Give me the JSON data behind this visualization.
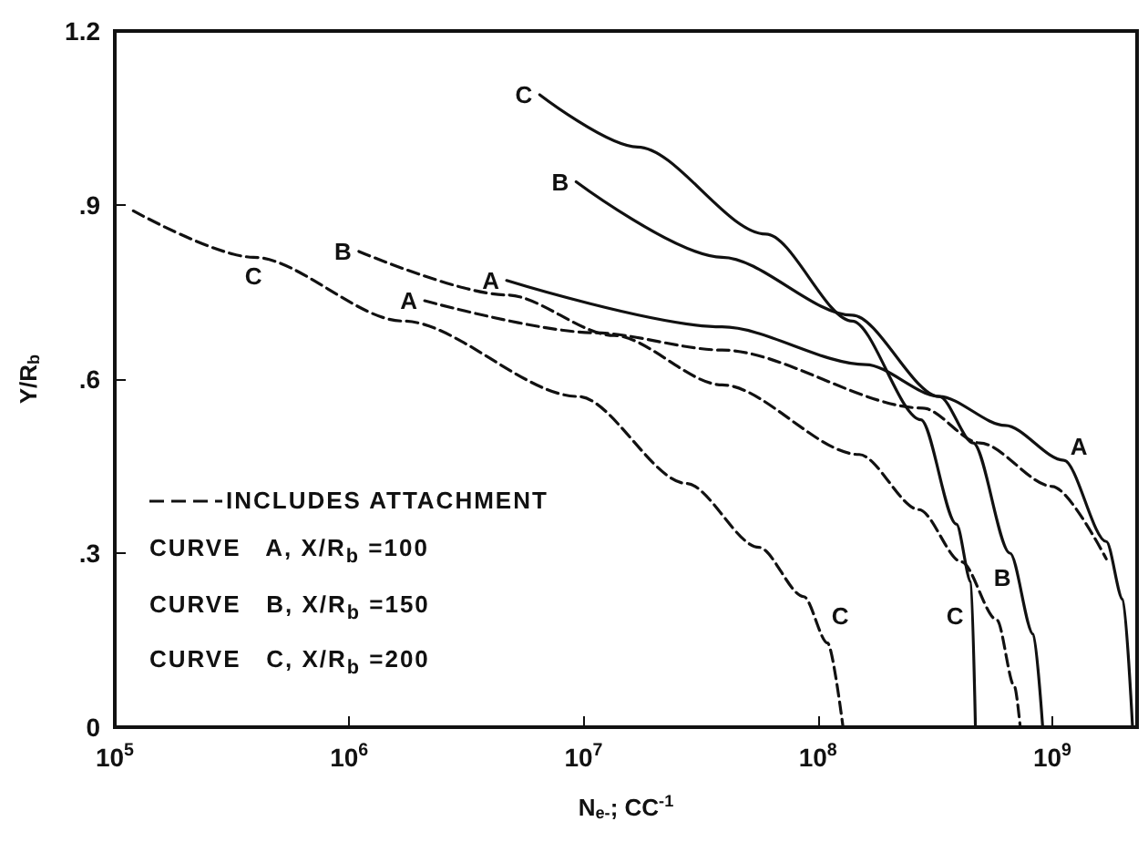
{
  "chart_data": {
    "type": "line",
    "xlabel": "N$_{e-}$; CC$^{-1}$",
    "ylabel": "Y/R$_{b}$",
    "log": "x",
    "xlim": [
      100000,
      2300000000
    ],
    "xticks": [
      {
        "value": 100000,
        "label": "10$^{5}$"
      },
      {
        "value": 1000000,
        "label": "10$^{6}$"
      },
      {
        "value": 10000000,
        "label": "10$^{7}$"
      },
      {
        "value": 100000000,
        "label": "10$^{8}$"
      },
      {
        "value": 1000000000,
        "label": "10$^{9}$"
      }
    ],
    "ylim": [
      0,
      1.2
    ],
    "yticks": [
      0,
      {
        "value": 0.3,
        "label": ".3"
      },
      {
        "value": 0.6,
        "label": ".6"
      },
      {
        "value": 0.9,
        "label": ".9"
      },
      1.2
    ],
    "grid": false,
    "series": [
      {
        "name": "C",
        "color": "#111111",
        "line_style": "solid",
        "x": [
          6500000,
          17000000,
          60000000,
          140000000,
          275000000,
          390000000,
          450000000,
          470000000
        ],
        "values": [
          1.09,
          1.0,
          0.85,
          0.7,
          0.53,
          0.35,
          0.25,
          0
        ]
      },
      {
        "name": "B",
        "color": "#111111",
        "line_style": "solid",
        "x": [
          9300000,
          39000000,
          140000000,
          330000000,
          460000000,
          660000000,
          830000000,
          910000000
        ],
        "values": [
          0.94,
          0.81,
          0.71,
          0.57,
          0.49,
          0.3,
          0.16,
          0
        ]
      },
      {
        "name": "A",
        "color": "#111111",
        "line_style": "solid",
        "x": [
          4700000,
          39000000,
          160000000,
          330000000,
          630000000,
          1120000000,
          1700000000,
          2000000000,
          2200000000
        ],
        "values": [
          0.77,
          0.69,
          0.625,
          0.57,
          0.52,
          0.46,
          0.32,
          0.22,
          0
        ]
      },
      {
        "name": "A",
        "color": "#111111",
        "line_style": "dashed",
        "x": [
          2100000,
          11000000,
          39000000,
          280000000,
          490000000,
          1000000000,
          1700000000
        ],
        "values": [
          0.735,
          0.68,
          0.65,
          0.55,
          0.49,
          0.415,
          0.29
        ]
      },
      {
        "name": "B",
        "color": "#111111",
        "line_style": "dashed",
        "x": [
          1100000,
          4700000,
          13500000,
          39000000,
          150000000,
          270000000,
          410000000,
          580000000,
          690000000,
          730000000
        ],
        "values": [
          0.82,
          0.745,
          0.675,
          0.59,
          0.47,
          0.375,
          0.285,
          0.185,
          0.07,
          0
        ]
      },
      {
        "name": "C",
        "color": "#111111",
        "line_style": "dashed",
        "x": [
          120000,
          390000,
          1700000,
          9500000,
          27500000,
          56000000,
          87000000,
          110000000,
          128000000
        ],
        "values": [
          0.89,
          0.81,
          0.7,
          0.57,
          0.42,
          0.31,
          0.225,
          0.145,
          0
        ]
      }
    ],
    "annotations": [
      "INCLUDES ATTACHMENT",
      "CURVE   A, X/R$_{b}$ =100",
      "CURVE   B, X/R$_{b}$ =150",
      "CURVE   C, X/R$_{b}$ =200",
      "A",
      "B",
      "C",
      "C"
    ]
  }
}
